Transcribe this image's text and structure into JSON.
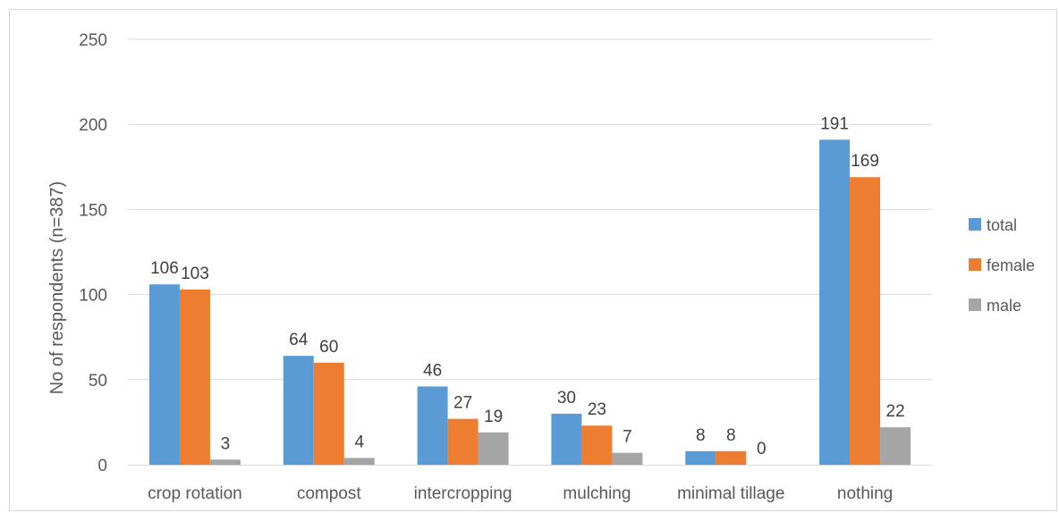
{
  "chart_data": {
    "type": "bar",
    "title": "",
    "xlabel": "",
    "ylabel": "No of respondents (n=387)",
    "ylim": [
      0,
      250
    ],
    "yticks": [
      0,
      50,
      100,
      150,
      200,
      250
    ],
    "grid": true,
    "legend_position": "right",
    "categories": [
      "crop rotation",
      "compost",
      "intercropping",
      "mulching",
      "minimal tillage",
      "nothing"
    ],
    "series": [
      {
        "name": "total",
        "color": "#5b9bd5",
        "values": [
          106,
          64,
          46,
          30,
          8,
          191
        ]
      },
      {
        "name": "female",
        "color": "#ed7d31",
        "values": [
          103,
          60,
          27,
          23,
          8,
          169
        ]
      },
      {
        "name": "male",
        "color": "#a5a5a5",
        "values": [
          3,
          4,
          19,
          7,
          0,
          22
        ]
      }
    ]
  }
}
